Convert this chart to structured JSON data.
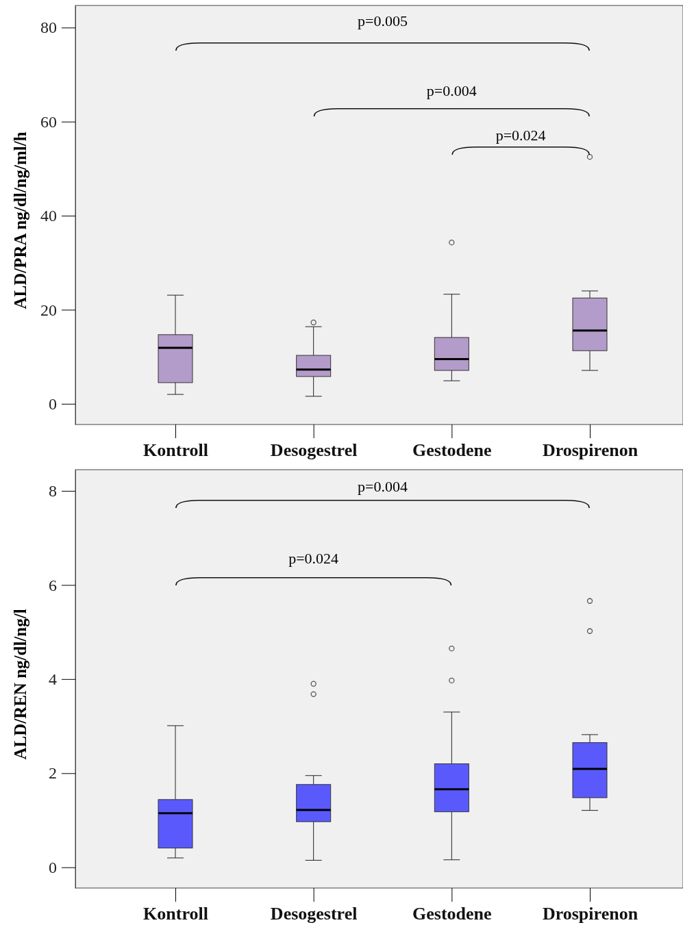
{
  "chart_data": [
    {
      "type": "box",
      "ylabel": "ALD/PRA ng/dl/ng/ml/h",
      "categories": [
        "Kontroll",
        "Desogestrel",
        "Gestodene",
        "Drospirenon"
      ],
      "ylim": [
        -4.4,
        84.7
      ],
      "yticks": [
        0,
        20,
        40,
        60,
        80
      ],
      "grid": false,
      "color": "#b39cc9",
      "boxes": [
        {
          "low": 2.0,
          "q1": 4.5,
          "median": 11.9,
          "q3": 14.7,
          "high": 23.1
        },
        {
          "low": 1.6,
          "q1": 5.8,
          "median": 7.3,
          "q3": 10.3,
          "high": 16.4,
          "outliers": [
            17.3
          ]
        },
        {
          "low": 4.9,
          "q1": 7.1,
          "median": 9.5,
          "q3": 14.1,
          "high": 23.3,
          "outliers": [
            34.3
          ]
        },
        {
          "low": 7.1,
          "q1": 11.3,
          "median": 15.6,
          "q3": 22.5,
          "high": 24.0,
          "outliers": [
            52.5
          ]
        }
      ],
      "annotations": [
        "p=0.005",
        "p=0.004",
        "p=0.024"
      ]
    },
    {
      "type": "box",
      "ylabel": "ALD/REN ng/dl/ng/l",
      "categories": [
        "Kontroll",
        "Desogestrel",
        "Gestodene",
        "Drospirenon"
      ],
      "ylim": [
        -0.44,
        8.45
      ],
      "yticks": [
        0,
        2,
        4,
        6,
        8
      ],
      "grid": false,
      "color": "#5a5afc",
      "boxes": [
        {
          "low": 0.2,
          "q1": 0.41,
          "median": 1.15,
          "q3": 1.44,
          "high": 3.01
        },
        {
          "low": 0.15,
          "q1": 0.97,
          "median": 1.22,
          "q3": 1.76,
          "high": 1.95,
          "outliers": [
            3.9,
            3.68
          ]
        },
        {
          "low": 0.16,
          "q1": 1.18,
          "median": 1.66,
          "q3": 2.2,
          "high": 3.3,
          "outliers": [
            4.65,
            3.97
          ]
        },
        {
          "low": 1.21,
          "q1": 1.48,
          "median": 2.09,
          "q3": 2.65,
          "high": 2.82,
          "outliers": [
            5.66,
            5.02
          ]
        }
      ],
      "annotations": [
        "p=0.004",
        "p=0.024"
      ]
    }
  ]
}
